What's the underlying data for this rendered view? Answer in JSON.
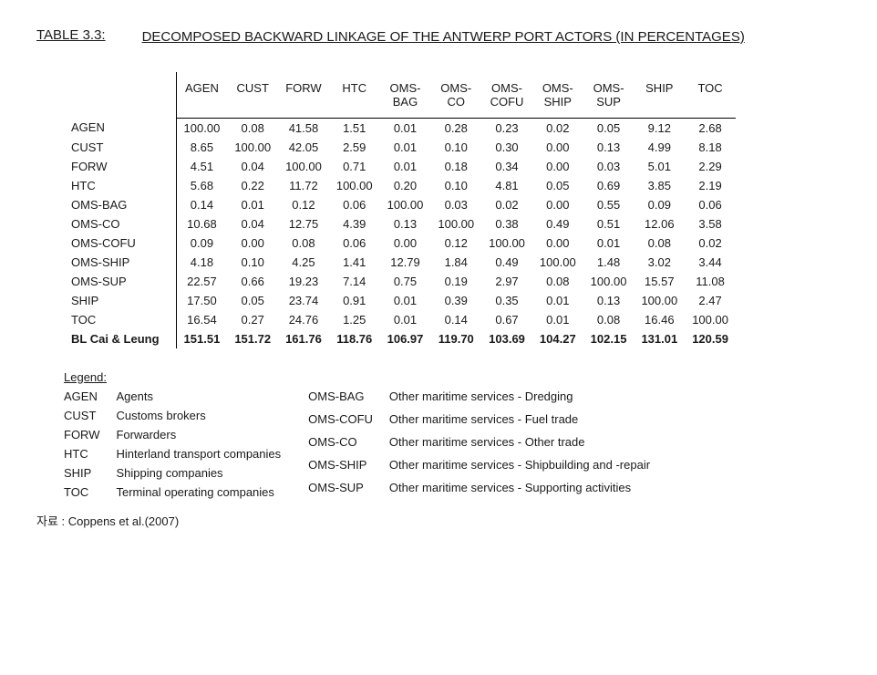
{
  "title_label": "TABLE 3.3:",
  "title_text": "DECOMPOSED BACKWARD LINKAGE OF THE ANTWERP PORT ACTORS (IN PERCENTAGES)",
  "columns": [
    "AGEN",
    "CUST",
    "FORW",
    "HTC",
    "OMS-BAG",
    "OMS-CO",
    "OMS-COFU",
    "OMS-SHIP",
    "OMS-SUP",
    "SHIP",
    "TOC"
  ],
  "rows": [
    {
      "label": "AGEN",
      "cells": [
        "100.00",
        "0.08",
        "41.58",
        "1.51",
        "0.01",
        "0.28",
        "0.23",
        "0.02",
        "0.05",
        "9.12",
        "2.68"
      ]
    },
    {
      "label": "CUST",
      "cells": [
        "8.65",
        "100.00",
        "42.05",
        "2.59",
        "0.01",
        "0.10",
        "0.30",
        "0.00",
        "0.13",
        "4.99",
        "8.18"
      ]
    },
    {
      "label": "FORW",
      "cells": [
        "4.51",
        "0.04",
        "100.00",
        "0.71",
        "0.01",
        "0.18",
        "0.34",
        "0.00",
        "0.03",
        "5.01",
        "2.29"
      ]
    },
    {
      "label": "HTC",
      "cells": [
        "5.68",
        "0.22",
        "11.72",
        "100.00",
        "0.20",
        "0.10",
        "4.81",
        "0.05",
        "0.69",
        "3.85",
        "2.19"
      ]
    },
    {
      "label": "OMS-BAG",
      "cells": [
        "0.14",
        "0.01",
        "0.12",
        "0.06",
        "100.00",
        "0.03",
        "0.02",
        "0.00",
        "0.55",
        "0.09",
        "0.06"
      ]
    },
    {
      "label": "OMS-CO",
      "cells": [
        "10.68",
        "0.04",
        "12.75",
        "4.39",
        "0.13",
        "100.00",
        "0.38",
        "0.49",
        "0.51",
        "12.06",
        "3.58"
      ]
    },
    {
      "label": "OMS-COFU",
      "cells": [
        "0.09",
        "0.00",
        "0.08",
        "0.06",
        "0.00",
        "0.12",
        "100.00",
        "0.00",
        "0.01",
        "0.08",
        "0.02"
      ]
    },
    {
      "label": "OMS-SHIP",
      "cells": [
        "4.18",
        "0.10",
        "4.25",
        "1.41",
        "12.79",
        "1.84",
        "0.49",
        "100.00",
        "1.48",
        "3.02",
        "3.44"
      ]
    },
    {
      "label": "OMS-SUP",
      "cells": [
        "22.57",
        "0.66",
        "19.23",
        "7.14",
        "0.75",
        "0.19",
        "2.97",
        "0.08",
        "100.00",
        "15.57",
        "11.08"
      ]
    },
    {
      "label": "SHIP",
      "cells": [
        "17.50",
        "0.05",
        "23.74",
        "0.91",
        "0.01",
        "0.39",
        "0.35",
        "0.01",
        "0.13",
        "100.00",
        "2.47"
      ]
    },
    {
      "label": "TOC",
      "cells": [
        "16.54",
        "0.27",
        "24.76",
        "1.25",
        "0.01",
        "0.14",
        "0.67",
        "0.01",
        "0.08",
        "16.46",
        "100.00"
      ]
    }
  ],
  "total_row": {
    "label": "BL Cai & Leung",
    "cells": [
      "151.51",
      "151.72",
      "161.76",
      "118.76",
      "106.97",
      "119.70",
      "103.69",
      "104.27",
      "102.15",
      "131.01",
      "120.59"
    ]
  },
  "legend_title": "Legend:",
  "legend_left": [
    {
      "k": "AGEN",
      "v": "Agents"
    },
    {
      "k": "CUST",
      "v": "Customs brokers"
    },
    {
      "k": "FORW",
      "v": "Forwarders"
    },
    {
      "k": "HTC",
      "v": "Hinterland transport companies"
    },
    {
      "k": "SHIP",
      "v": "Shipping companies"
    },
    {
      "k": "TOC",
      "v": "Terminal operating companies"
    }
  ],
  "legend_right": [
    {
      "k": "OMS-BAG",
      "v": "Other maritime services - Dredging"
    },
    {
      "k": "OMS-COFU",
      "v": "Other maritime services - Fuel trade"
    },
    {
      "k": "OMS-CO",
      "v": "Other maritime services - Other trade"
    },
    {
      "k": "OMS-SHIP",
      "v": "Other maritime services - Shipbuilding and -repair"
    },
    {
      "k": "OMS-SUP",
      "v": "Other maritime services - Supporting activities"
    }
  ],
  "source": "자료 : Coppens et al.(2007)",
  "style": {
    "text_color": "#1a1a1a",
    "background": "#ffffff",
    "border_color": "#000000",
    "font_family": "Arial, Helvetica, sans-serif",
    "body_fontsize": 13,
    "title_fontsize": 15
  }
}
